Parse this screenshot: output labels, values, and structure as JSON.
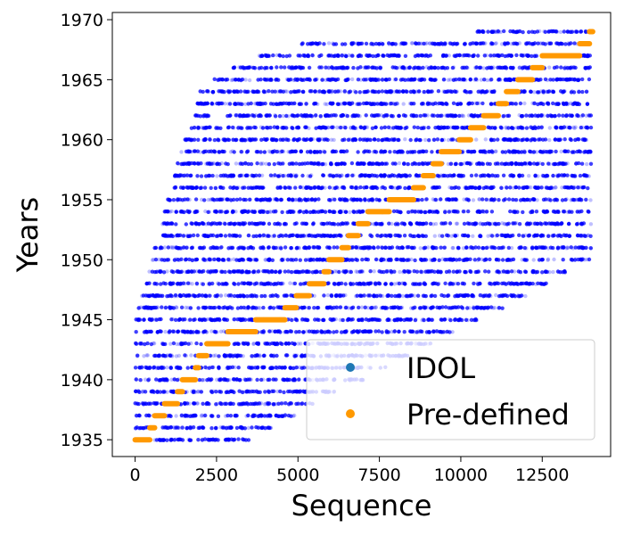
{
  "chart_data": {
    "type": "scatter",
    "xlabel": "Sequence",
    "ylabel": "Years",
    "xlim": [
      -700,
      14600
    ],
    "ylim": [
      1933.6,
      1970.6
    ],
    "x_ticks": [
      0,
      2500,
      5000,
      7500,
      10000,
      12500
    ],
    "y_ticks": [
      1935,
      1940,
      1945,
      1950,
      1955,
      1960,
      1965,
      1970
    ],
    "x_tick_labels": [
      "0",
      "2500",
      "5000",
      "7500",
      "10000",
      "12500"
    ],
    "y_tick_labels": [
      "1935",
      "1940",
      "1945",
      "1950",
      "1955",
      "1960",
      "1965",
      "1970"
    ],
    "grid": false,
    "legend_position": "lower-right",
    "series": [
      {
        "name": "IDOL",
        "legend_color": "#1f77b4",
        "point_color": "#0000ff",
        "description_of_distribution": "dense scattered points for every integer year, wider spread at later sequences",
        "ranges": [
          {
            "year": 1935,
            "x_range": [
              0,
              3500
            ]
          },
          {
            "year": 1936,
            "x_range": [
              0,
              4200
            ]
          },
          {
            "year": 1937,
            "x_range": [
              0,
              4900
            ]
          },
          {
            "year": 1938,
            "x_range": [
              0,
              5600
            ]
          },
          {
            "year": 1939,
            "x_range": [
              0,
              6300
            ]
          },
          {
            "year": 1940,
            "x_range": [
              0,
              7000
            ]
          },
          {
            "year": 1941,
            "x_range": [
              0,
              7700
            ]
          },
          {
            "year": 1942,
            "x_range": [
              0,
              8400
            ]
          },
          {
            "year": 1943,
            "x_range": [
              0,
              9100
            ]
          },
          {
            "year": 1944,
            "x_range": [
              0,
              9800
            ]
          },
          {
            "year": 1945,
            "x_range": [
              0,
              10500
            ]
          },
          {
            "year": 1946,
            "x_range": [
              100,
              11300
            ]
          },
          {
            "year": 1947,
            "x_range": [
              200,
              12000
            ]
          },
          {
            "year": 1948,
            "x_range": [
              300,
              12700
            ]
          },
          {
            "year": 1949,
            "x_range": [
              400,
              13400
            ]
          },
          {
            "year": 1950,
            "x_range": [
              500,
              14000
            ]
          },
          {
            "year": 1951,
            "x_range": [
              600,
              14000
            ]
          },
          {
            "year": 1952,
            "x_range": [
              700,
              14000
            ]
          },
          {
            "year": 1953,
            "x_range": [
              800,
              14000
            ]
          },
          {
            "year": 1954,
            "x_range": [
              900,
              14000
            ]
          },
          {
            "year": 1955,
            "x_range": [
              1000,
              14000
            ]
          },
          {
            "year": 1956,
            "x_range": [
              1100,
              14000
            ]
          },
          {
            "year": 1957,
            "x_range": [
              1200,
              14000
            ]
          },
          {
            "year": 1958,
            "x_range": [
              1300,
              14000
            ]
          },
          {
            "year": 1959,
            "x_range": [
              1400,
              14000
            ]
          },
          {
            "year": 1960,
            "x_range": [
              1500,
              14000
            ]
          },
          {
            "year": 1961,
            "x_range": [
              1600,
              14000
            ]
          },
          {
            "year": 1962,
            "x_range": [
              1700,
              14000
            ]
          },
          {
            "year": 1963,
            "x_range": [
              1800,
              14000
            ]
          },
          {
            "year": 1964,
            "x_range": [
              2000,
              14000
            ]
          },
          {
            "year": 1965,
            "x_range": [
              2400,
              14000
            ]
          },
          {
            "year": 1966,
            "x_range": [
              3000,
              14000
            ]
          },
          {
            "year": 1967,
            "x_range": [
              3800,
              14000
            ]
          },
          {
            "year": 1968,
            "x_range": [
              5000,
              14000
            ]
          },
          {
            "year": 1969,
            "x_range": [
              10500,
              14000
            ]
          }
        ]
      },
      {
        "name": "Pre-defined",
        "color": "#ff9900",
        "segments": [
          {
            "year": 1935,
            "x_start": 0,
            "x_end": 450
          },
          {
            "year": 1936,
            "x_start": 450,
            "x_end": 600
          },
          {
            "year": 1937,
            "x_start": 600,
            "x_end": 900
          },
          {
            "year": 1938,
            "x_start": 900,
            "x_end": 1300
          },
          {
            "year": 1939,
            "x_start": 1300,
            "x_end": 1450
          },
          {
            "year": 1940,
            "x_start": 1450,
            "x_end": 1850
          },
          {
            "year": 1941,
            "x_start": 1850,
            "x_end": 1950
          },
          {
            "year": 1942,
            "x_start": 1950,
            "x_end": 2200
          },
          {
            "year": 1943,
            "x_start": 2200,
            "x_end": 2850
          },
          {
            "year": 1944,
            "x_start": 2850,
            "x_end": 3700
          },
          {
            "year": 1945,
            "x_start": 3700,
            "x_end": 4600
          },
          {
            "year": 1946,
            "x_start": 4600,
            "x_end": 4950
          },
          {
            "year": 1947,
            "x_start": 4950,
            "x_end": 5350
          },
          {
            "year": 1948,
            "x_start": 5350,
            "x_end": 5800
          },
          {
            "year": 1949,
            "x_start": 5800,
            "x_end": 5950
          },
          {
            "year": 1950,
            "x_start": 5950,
            "x_end": 6350
          },
          {
            "year": 1951,
            "x_start": 6350,
            "x_end": 6550
          },
          {
            "year": 1952,
            "x_start": 6550,
            "x_end": 6850
          },
          {
            "year": 1953,
            "x_start": 6850,
            "x_end": 7150
          },
          {
            "year": 1954,
            "x_start": 7150,
            "x_end": 7800
          },
          {
            "year": 1955,
            "x_start": 7800,
            "x_end": 8550
          },
          {
            "year": 1956,
            "x_start": 8550,
            "x_end": 8850
          },
          {
            "year": 1957,
            "x_start": 8850,
            "x_end": 9150
          },
          {
            "year": 1958,
            "x_start": 9150,
            "x_end": 9400
          },
          {
            "year": 1959,
            "x_start": 9400,
            "x_end": 9950
          },
          {
            "year": 1960,
            "x_start": 9950,
            "x_end": 10300
          },
          {
            "year": 1961,
            "x_start": 10300,
            "x_end": 10700
          },
          {
            "year": 1962,
            "x_start": 10700,
            "x_end": 11150
          },
          {
            "year": 1963,
            "x_start": 11150,
            "x_end": 11400
          },
          {
            "year": 1964,
            "x_start": 11400,
            "x_end": 11750
          },
          {
            "year": 1965,
            "x_start": 11750,
            "x_end": 12200
          },
          {
            "year": 1966,
            "x_start": 12200,
            "x_end": 12500
          },
          {
            "year": 1967,
            "x_start": 12500,
            "x_end": 13650
          },
          {
            "year": 1968,
            "x_start": 13650,
            "x_end": 13950
          },
          {
            "year": 1969,
            "x_start": 13950,
            "x_end": 14050
          }
        ]
      }
    ]
  }
}
